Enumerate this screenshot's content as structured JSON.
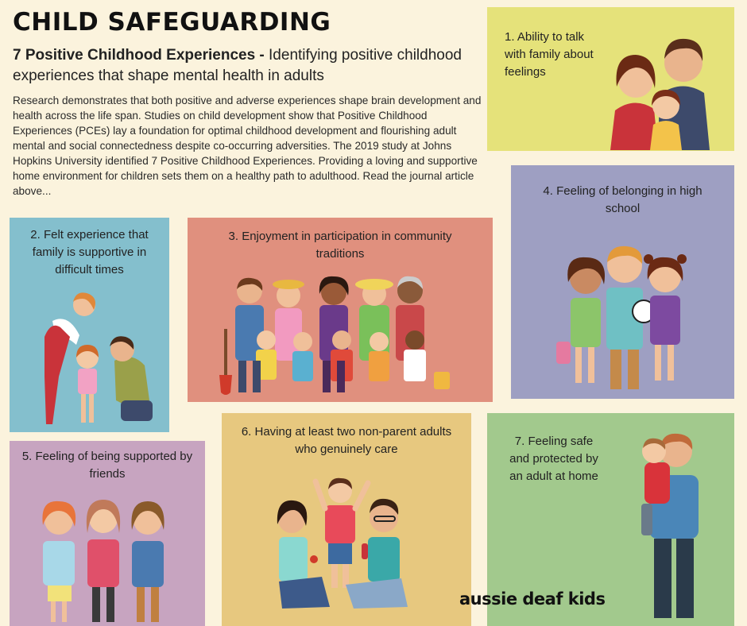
{
  "header": {
    "title": "CHILD SAFEGUARDING",
    "subtitle_bold": "7 Positive Childhood Experiences -",
    "subtitle_rest": " Identifying positive childhood experiences that shape mental health in adults",
    "intro": "Research demonstrates that both positive and adverse experiences shape brain development and health across the life span. Studies on child development show that Positive Childhood Experiences (PCEs) lay a foundation for optimal childhood development and flourishing adult mental and social connectedness despite co-occurring adversities. The 2019 study at Johns Hopkins University identified 7 Positive Childhood Experiences. Providing a loving and supportive home environment for children sets them on a healthy path to adulthood. Read the journal article above..."
  },
  "experiences": {
    "e1": "1. Ability to talk with family about feelings",
    "e2": "2. Felt experience that family is supportive in difficult times",
    "e3": "3. Enjoyment in participation in community traditions",
    "e4": "4. Feeling of belonging in high school",
    "e5": "5. Feeling of being supported by friends",
    "e6": "6. Having at least two non-parent adults who genuinely care",
    "e7": "7. Feeling safe and protected by an adult at home"
  },
  "logo": {
    "text": "aussie deaf kids"
  },
  "colors": {
    "background": "#fbf3dd",
    "box1": "#e5e27a",
    "box2": "#84bfcd",
    "box3": "#e0907e",
    "box4": "#9e9fc2",
    "box5": "#c7a4c0",
    "box6": "#e7c87f",
    "box7": "#a2c98d"
  }
}
